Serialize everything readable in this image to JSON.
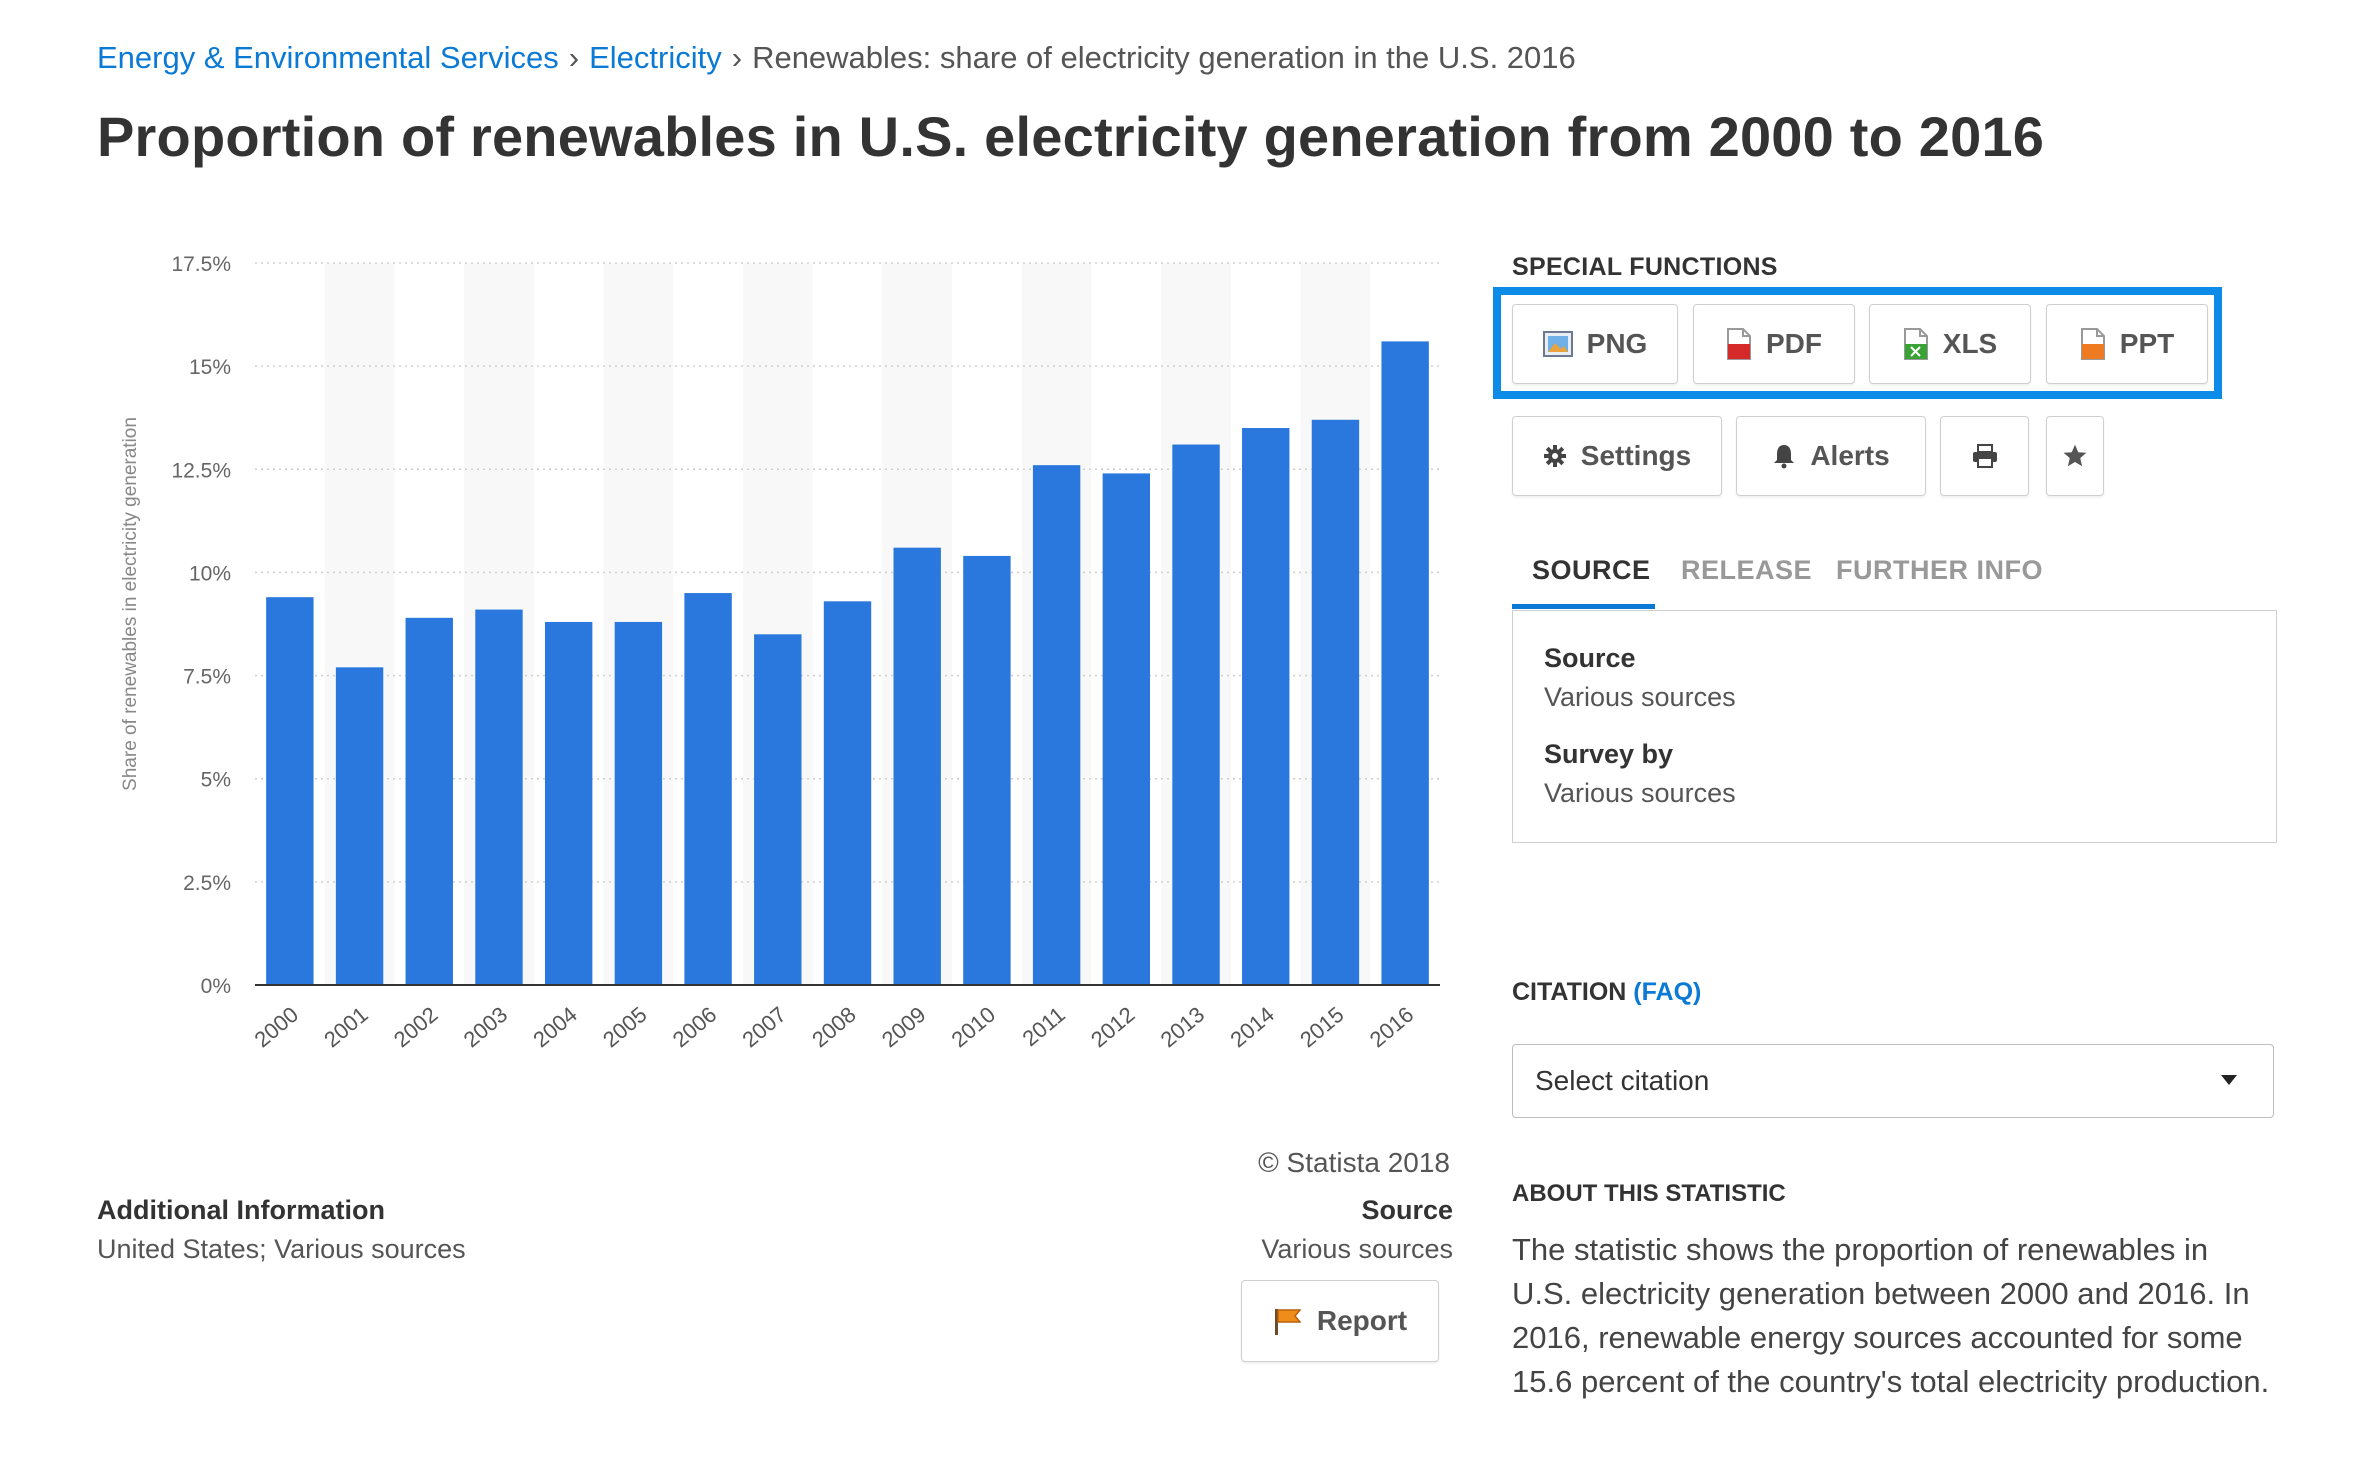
{
  "breadcrumb": {
    "item1": "Energy & Environmental Services",
    "item2": "Electricity",
    "current": "Renewables: share of electricity generation in the U.S. 2016",
    "separator": "›"
  },
  "page_title": "Proportion of renewables in U.S. electricity generation from 2000 to 2016",
  "chart_data": {
    "type": "bar",
    "title": "",
    "xlabel": "",
    "ylabel": "Share of renewables in electricity generation",
    "categories": [
      "2000",
      "2001",
      "2002",
      "2003",
      "2004",
      "2005",
      "2006",
      "2007",
      "2008",
      "2009",
      "2010",
      "2011",
      "2012",
      "2013",
      "2014",
      "2015",
      "2016"
    ],
    "values": [
      9.4,
      7.7,
      8.9,
      9.1,
      8.8,
      8.8,
      9.5,
      8.5,
      9.3,
      10.6,
      10.4,
      12.6,
      12.4,
      13.1,
      13.5,
      13.7,
      15.6
    ],
    "ylim": [
      0,
      17.5
    ],
    "yticks": [
      0,
      2.5,
      5,
      7.5,
      10,
      12.5,
      15,
      17.5
    ],
    "ytick_labels": [
      "0%",
      "2.5%",
      "5%",
      "7.5%",
      "10%",
      "12.5%",
      "15%",
      "17.5%"
    ],
    "bar_color": "#2a77dd",
    "grid": true
  },
  "copyright": "© Statista 2018",
  "additional_info": {
    "heading": "Additional Information",
    "value": "United States; Various sources"
  },
  "source_info": {
    "heading": "Source",
    "value": "Various sources"
  },
  "report_label": "Report",
  "special_functions": {
    "title": "SPECIAL FUNCTIONS",
    "png": "PNG",
    "pdf": "PDF",
    "xls": "XLS",
    "ppt": "PPT",
    "settings": "Settings",
    "alerts": "Alerts"
  },
  "tabs": {
    "source": "SOURCE",
    "release": "RELEASE",
    "further": "FURTHER INFO"
  },
  "source_panel": {
    "source_label": "Source",
    "source_value": "Various sources",
    "survey_label": "Survey by",
    "survey_value": "Various sources"
  },
  "citation": {
    "label": "CITATION",
    "faq": "(FAQ)",
    "select_value": "Select citation"
  },
  "about": {
    "heading": "ABOUT THIS STATISTIC",
    "text": "The statistic shows the proportion of renewables in U.S. electricity generation between 2000 and 2016. In 2016, renewable energy sources accounted for some 15.6 percent of the country's total electricity production."
  },
  "colors": {
    "accent": "#0a7ad4",
    "highlight_frame": "#0c8be8",
    "bar": "#2a77dd"
  }
}
